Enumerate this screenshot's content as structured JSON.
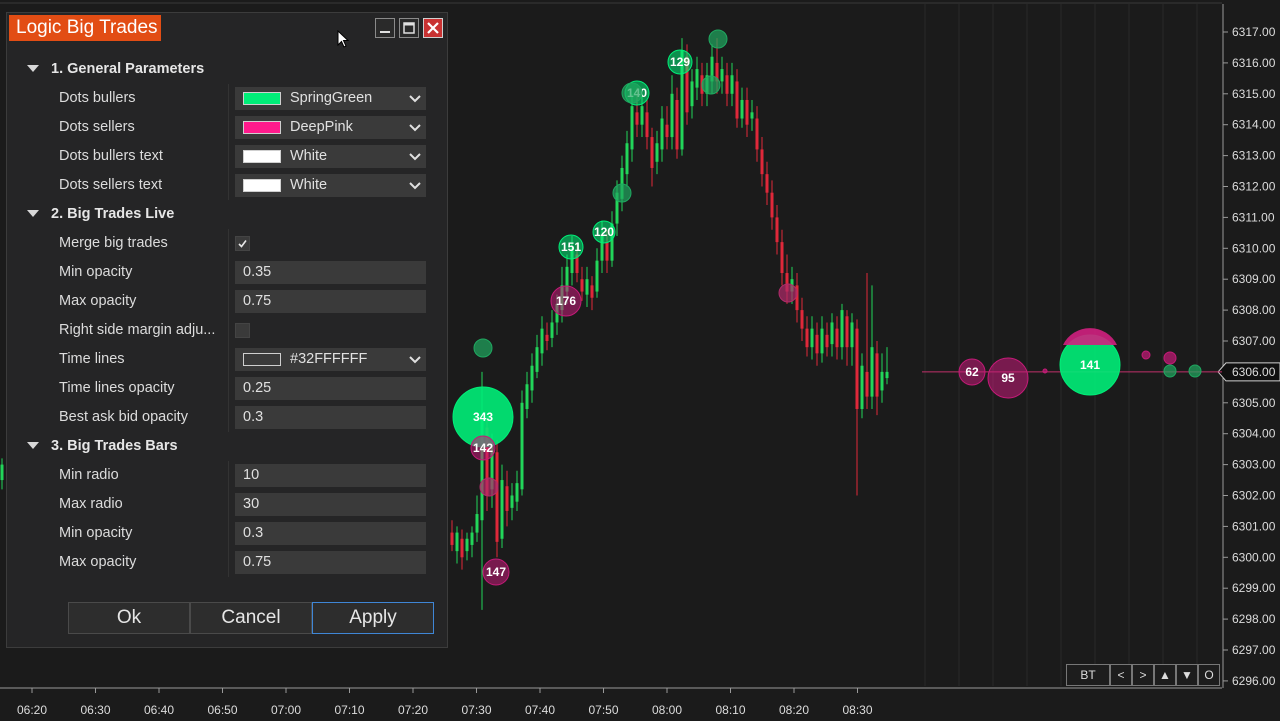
{
  "dialog": {
    "title": "Logic Big Trades",
    "sections": [
      {
        "title": "1. General Parameters",
        "rows": [
          {
            "label": "Dots bullers",
            "type": "color",
            "value": "SpringGreen",
            "swatch": "#00ee78"
          },
          {
            "label": "Dots sellers",
            "type": "color",
            "value": "DeepPink",
            "swatch": "#ff1a8c"
          },
          {
            "label": "Dots bullers text",
            "type": "color",
            "value": "White",
            "swatch": "#ffffff"
          },
          {
            "label": "Dots sellers text",
            "type": "color",
            "value": "White",
            "swatch": "#ffffff"
          }
        ]
      },
      {
        "title": "2. Big Trades Live",
        "rows": [
          {
            "label": "Merge big trades",
            "type": "check",
            "checked": true
          },
          {
            "label": "Min opacity",
            "type": "text",
            "value": "0.35"
          },
          {
            "label": "Max opacity",
            "type": "text",
            "value": "0.75"
          },
          {
            "label": "Right side margin adju...",
            "type": "check",
            "checked": false
          },
          {
            "label": "Time lines",
            "type": "color",
            "value": "#32FFFFFF",
            "swatch": "#3a3a3a"
          },
          {
            "label": "Time lines opacity",
            "type": "text",
            "value": "0.25"
          },
          {
            "label": "Best ask bid opacity",
            "type": "text",
            "value": "0.3"
          }
        ]
      },
      {
        "title": "3. Big Trades Bars",
        "rows": [
          {
            "label": "Min radio",
            "type": "text",
            "value": "10"
          },
          {
            "label": "Max radio",
            "type": "text",
            "value": "30"
          },
          {
            "label": "Min opacity",
            "type": "text",
            "value": "0.3"
          },
          {
            "label": "Max opacity",
            "type": "text",
            "value": "0.75"
          }
        ]
      }
    ],
    "buttons": {
      "ok": "Ok",
      "cancel": "Cancel",
      "apply": "Apply"
    }
  },
  "chart": {
    "price_labels": [
      "6317.00",
      "6316.00",
      "6315.00",
      "6314.00",
      "6313.00",
      "6312.00",
      "6311.00",
      "6310.00",
      "6309.00",
      "6308.00",
      "6307.00",
      "6306.00",
      "6305.00",
      "6304.00",
      "6303.00",
      "6302.00",
      "6301.00",
      "6300.00",
      "6299.00",
      "6298.00",
      "6297.00",
      "6296.00"
    ],
    "current_price": "6306.00",
    "time_labels": [
      "06:20",
      "06:30",
      "06:40",
      "06:50",
      "07:00",
      "07:10",
      "07:20",
      "07:30",
      "07:40",
      "07:50",
      "08:00",
      "08:10",
      "08:20",
      "08:30"
    ],
    "bubbles": [
      {
        "label": "343",
        "side": "buy"
      },
      {
        "label": "142",
        "side": "sell"
      },
      {
        "label": "147",
        "side": "sell"
      },
      {
        "label": "176",
        "side": "sell"
      },
      {
        "label": "151",
        "side": "buy"
      },
      {
        "label": "120",
        "side": "buy"
      },
      {
        "label": "140",
        "side": "buy"
      },
      {
        "label": "129",
        "side": "buy"
      },
      {
        "label": "62",
        "side": "sell"
      },
      {
        "label": "95",
        "side": "sell"
      },
      {
        "label": "141",
        "side": "buy"
      }
    ],
    "colors": {
      "bull": "#22d65a",
      "bear": "#e0283a",
      "buy_dot": "#1fa860",
      "sell_dot": "#b02a6a"
    }
  },
  "nav": {
    "bt": "BT",
    "prev": "<",
    "next": ">",
    "up": "▲",
    "down": "▼",
    "o": "O"
  }
}
